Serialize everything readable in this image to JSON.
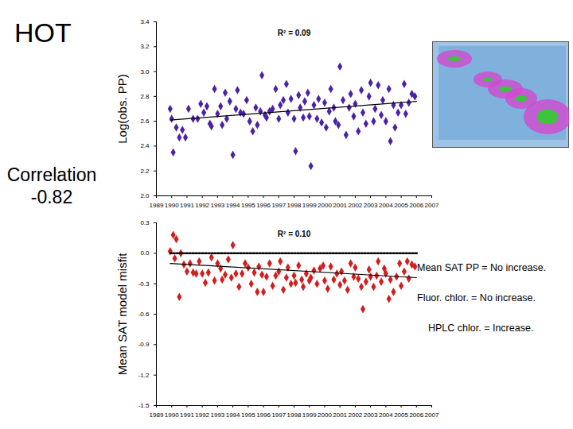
{
  "title": "HOT",
  "annotation": "Correlation -0.82",
  "notes": [
    "Mean SAT PP = No increase.",
    "Fluor. chlor. = No increase.",
    "HPLC chlor. = Increase."
  ],
  "chart_data": [
    {
      "type": "scatter",
      "y_label": "Log(obs. PP)",
      "annotation": "R² = 0.09",
      "xlim": [
        1989,
        2007
      ],
      "xticks": [
        1989,
        1990,
        1991,
        1992,
        1993,
        1994,
        1995,
        1996,
        1997,
        1998,
        1999,
        2000,
        2001,
        2002,
        2003,
        2004,
        2005,
        2006,
        2007
      ],
      "ylim": [
        2.0,
        3.4
      ],
      "yticks": [
        {
          "value": 2.0,
          "label": "2.0"
        },
        2.2,
        2.4,
        2.6,
        2.8,
        {
          "value": 3.0,
          "label": "3.0"
        },
        3.2,
        3.4
      ],
      "series": [
        {
          "type": "scatter",
          "color": "#4b22a6",
          "marker": "diamond",
          "x": [
            1989.9,
            1990.0,
            1990.1,
            1990.3,
            1990.5,
            1990.7,
            1990.9,
            1991.1,
            1991.4,
            1991.7,
            1991.9,
            1992.1,
            1992.3,
            1992.5,
            1992.6,
            1992.8,
            1993.0,
            1993.2,
            1993.3,
            1993.5,
            1993.6,
            1993.8,
            1994.0,
            1994.2,
            1994.3,
            1994.5,
            1994.7,
            1994.9,
            1995.1,
            1995.3,
            1995.5,
            1995.6,
            1995.8,
            1995.9,
            1996.1,
            1996.2,
            1996.4,
            1996.6,
            1996.8,
            1997.0,
            1997.1,
            1997.3,
            1997.5,
            1997.6,
            1997.8,
            1998.0,
            1998.1,
            1998.3,
            1998.4,
            1998.6,
            1998.7,
            1998.9,
            1999.0,
            1999.1,
            1999.3,
            1999.5,
            1999.6,
            1999.8,
            2000.0,
            2000.1,
            2000.3,
            2000.4,
            2000.6,
            2000.7,
            2000.9,
            2001.0,
            2001.2,
            2001.4,
            2001.6,
            2001.7,
            2001.9,
            2002.0,
            2002.2,
            2002.4,
            2002.5,
            2002.7,
            2002.9,
            2003.0,
            2003.2,
            2003.3,
            2003.5,
            2003.7,
            2003.8,
            2004.0,
            2004.2,
            2004.3,
            2004.5,
            2004.6,
            2004.8,
            2005.0,
            2005.2,
            2005.3,
            2005.5,
            2005.7,
            2005.9
          ],
          "values": [
            2.7,
            2.62,
            2.35,
            2.55,
            2.47,
            2.53,
            2.47,
            2.7,
            2.62,
            2.62,
            2.74,
            2.67,
            2.72,
            2.58,
            2.56,
            2.86,
            2.66,
            2.72,
            2.57,
            2.83,
            2.62,
            2.76,
            2.33,
            2.7,
            2.85,
            2.67,
            2.66,
            2.77,
            2.6,
            2.52,
            2.71,
            2.57,
            2.68,
            2.97,
            2.65,
            2.63,
            2.68,
            2.7,
            2.86,
            2.62,
            2.73,
            2.77,
            2.9,
            2.67,
            2.78,
            2.62,
            2.36,
            2.81,
            2.71,
            2.63,
            2.76,
            2.83,
            2.64,
            2.24,
            2.73,
            2.62,
            2.78,
            2.59,
            2.75,
            2.55,
            2.68,
            2.86,
            2.71,
            2.6,
            2.57,
            3.04,
            2.77,
            2.49,
            2.71,
            2.82,
            2.64,
            2.74,
            2.52,
            2.85,
            2.67,
            2.58,
            2.8,
            2.91,
            2.6,
            2.7,
            2.89,
            2.65,
            2.77,
            2.6,
            2.86,
            2.44,
            2.73,
            2.55,
            2.67,
            2.73,
            2.9,
            2.66,
            2.75,
            2.82,
            2.8
          ]
        },
        {
          "type": "line",
          "color": "#000000",
          "line_style": "solid",
          "x": [
            1989.9,
            2006.0
          ],
          "values": [
            2.61,
            2.76
          ]
        }
      ]
    },
    {
      "type": "scatter",
      "y_label": "Mean SAT model misfit",
      "annotation": "R² = 0.10",
      "xlim": [
        1989,
        2007
      ],
      "xticks": [
        1989,
        1990,
        1991,
        1992,
        1993,
        1994,
        1995,
        1996,
        1997,
        1998,
        1999,
        2000,
        2001,
        2002,
        2003,
        2004,
        2005,
        2006,
        2007
      ],
      "ylim": [
        -1.5,
        0.3
      ],
      "yticks": [
        0.3,
        {
          "value": 0,
          "label": "0.0"
        },
        -0.3,
        -0.6,
        -0.9,
        -1.2,
        -1.5
      ],
      "series": [
        {
          "type": "scatter",
          "color": "#d11f1f",
          "marker": "diamond",
          "x": [
            1989.9,
            1990.1,
            1990.2,
            1990.3,
            1990.5,
            1990.6,
            1990.8,
            1991.0,
            1991.2,
            1991.4,
            1991.6,
            1991.8,
            1992.0,
            1992.2,
            1992.4,
            1992.6,
            1992.8,
            1993.0,
            1993.2,
            1993.3,
            1993.5,
            1993.7,
            1993.9,
            1994.0,
            1994.2,
            1994.4,
            1994.6,
            1994.8,
            1995.0,
            1995.2,
            1995.4,
            1995.6,
            1995.7,
            1995.9,
            1996.0,
            1996.2,
            1996.4,
            1996.6,
            1996.8,
            1997.0,
            1997.1,
            1997.3,
            1997.5,
            1997.6,
            1997.8,
            1998.0,
            1998.1,
            1998.3,
            1998.5,
            1998.6,
            1998.8,
            1999.0,
            1999.1,
            1999.3,
            1999.5,
            1999.7,
            1999.9,
            2000.0,
            2000.2,
            2000.4,
            2000.6,
            2000.8,
            2001.0,
            2001.1,
            2001.3,
            2001.5,
            2001.7,
            2001.9,
            2002.0,
            2002.2,
            2002.4,
            2002.5,
            2002.7,
            2002.9,
            2003.0,
            2003.2,
            2003.4,
            2003.5,
            2003.7,
            2003.9,
            2004.0,
            2004.2,
            2004.3,
            2004.5,
            2004.7,
            2004.9,
            2005.0,
            2005.2,
            2005.4,
            2005.5,
            2005.7,
            2005.9
          ],
          "values": [
            0.02,
            0.18,
            -0.05,
            0.14,
            -0.43,
            0.0,
            -0.11,
            -0.18,
            -0.1,
            -0.19,
            -0.2,
            -0.08,
            -0.2,
            -0.29,
            -0.19,
            -0.04,
            -0.27,
            -0.1,
            -0.15,
            -0.26,
            -0.21,
            -0.06,
            -0.24,
            0.08,
            -0.2,
            -0.33,
            -0.2,
            -0.1,
            -0.14,
            -0.3,
            -0.19,
            -0.38,
            -0.13,
            -0.21,
            -0.38,
            -0.23,
            -0.1,
            -0.32,
            -0.22,
            -0.18,
            -0.08,
            -0.36,
            -0.24,
            -0.14,
            -0.3,
            -0.22,
            -0.29,
            -0.12,
            -0.26,
            -0.33,
            -0.2,
            -0.27,
            -0.24,
            -0.17,
            -0.3,
            -0.15,
            -0.12,
            -0.27,
            -0.35,
            -0.13,
            -0.26,
            -0.2,
            -0.31,
            -0.18,
            -0.27,
            -0.36,
            -0.1,
            -0.23,
            -0.14,
            -0.25,
            -0.33,
            -0.55,
            -0.28,
            -0.16,
            -0.23,
            -0.33,
            -0.22,
            -0.08,
            -0.28,
            -0.15,
            -0.2,
            -0.45,
            -0.26,
            -0.38,
            -0.23,
            -0.1,
            -0.32,
            -0.18,
            -0.08,
            -0.25,
            -0.11,
            -0.13
          ]
        },
        {
          "type": "line",
          "color": "#000000",
          "line_style": "dotted",
          "x": [
            1989.9,
            2006.1
          ],
          "values": [
            0,
            0
          ]
        },
        {
          "type": "line",
          "color": "#000000",
          "line_style": "solid",
          "x": [
            1989.9,
            2006.0
          ],
          "values": [
            -0.1,
            -0.24
          ]
        }
      ]
    }
  ]
}
